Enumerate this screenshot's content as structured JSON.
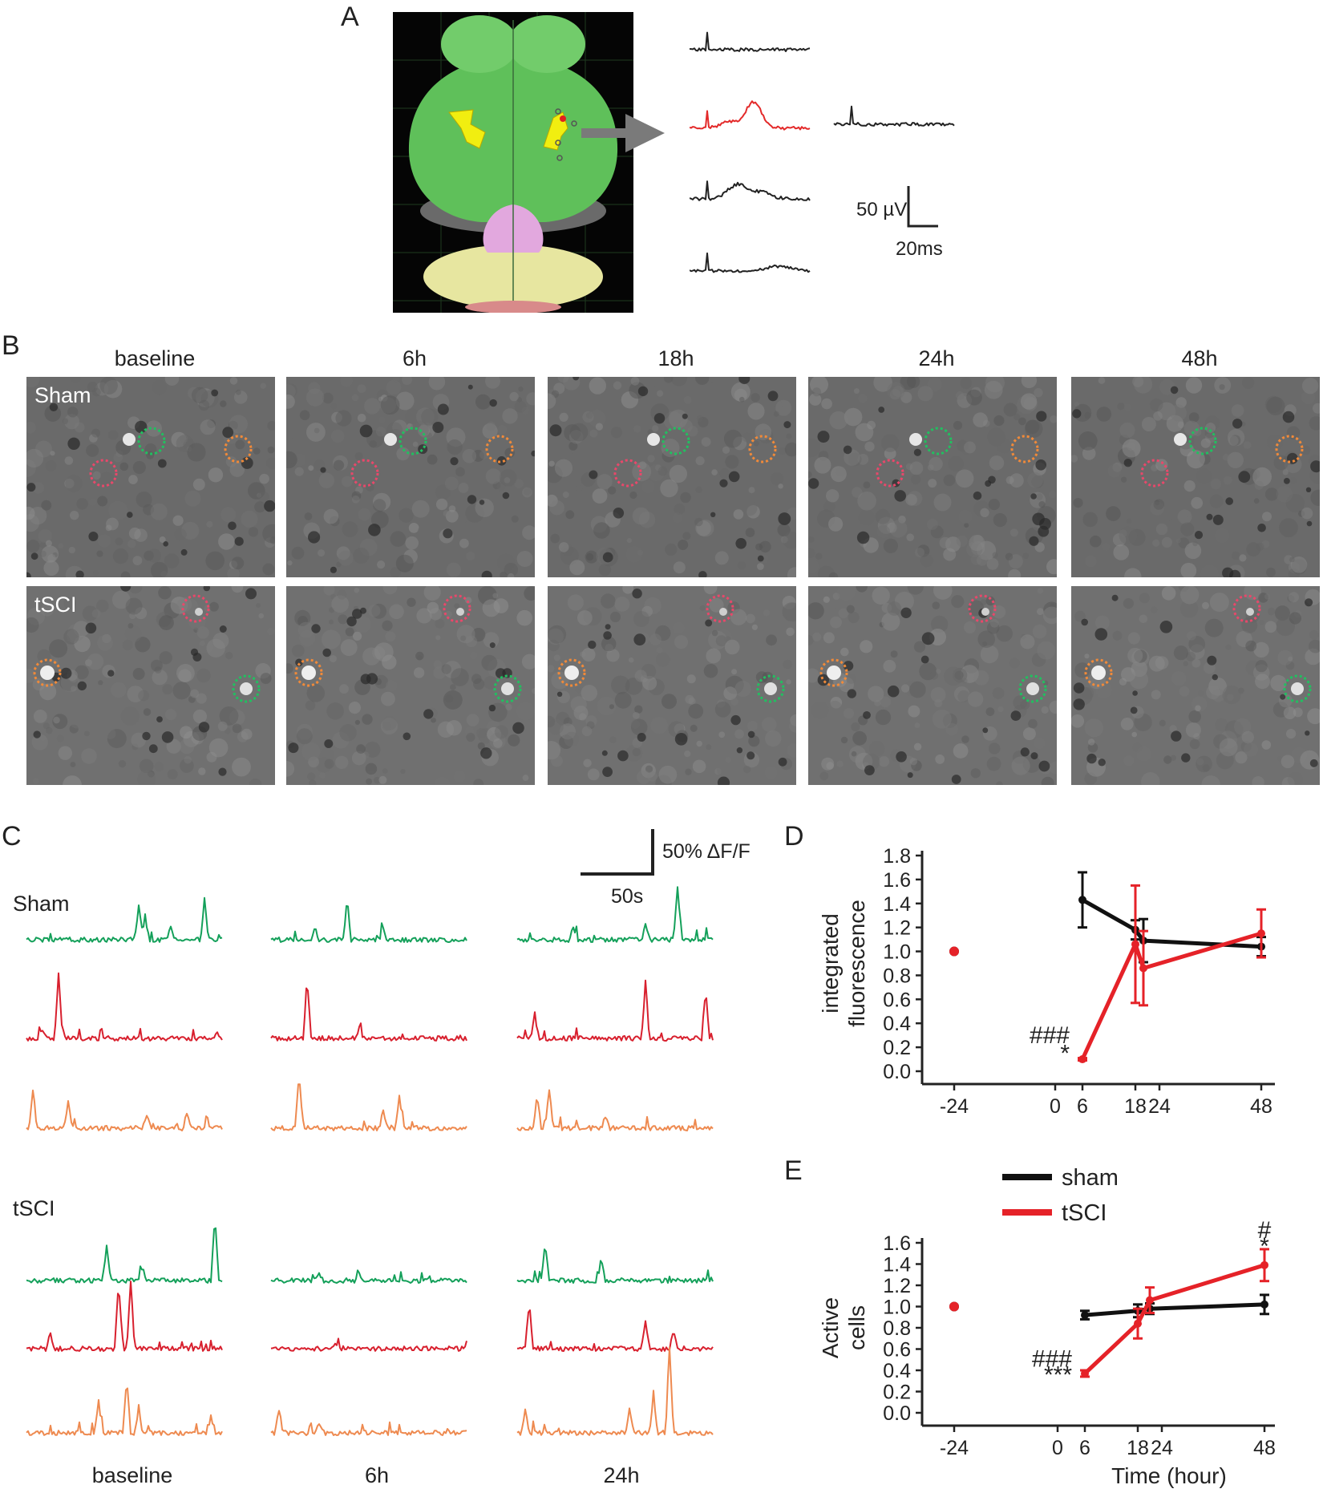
{
  "panels": {
    "a": "A",
    "b": "B",
    "c": "C",
    "d": "D",
    "e": "E"
  },
  "panel_a": {
    "scale_voltage": "50 µV",
    "scale_time": "20ms"
  },
  "panel_b": {
    "timepoints": [
      "baseline",
      "6h",
      "18h",
      "24h",
      "48h"
    ],
    "rows": [
      "Sham",
      "tSCI"
    ],
    "roi_colors": {
      "red": "#e8486a",
      "green": "#21c060",
      "orange": "#f08a3a"
    }
  },
  "panel_c": {
    "scale_y": "50% ΔF/F",
    "scale_x": "50s",
    "groups": [
      "Sham",
      "tSCI"
    ],
    "timepoints": [
      "baseline",
      "6h",
      "24h"
    ],
    "trace_colors": {
      "green": "#14a05a",
      "red": "#d8202e",
      "orange": "#ee8a50"
    }
  },
  "chart_data": [
    {
      "type": "line",
      "panel": "D",
      "title": "",
      "xlabel": "",
      "ylabel": "integrated fluorescence",
      "xticks": [
        -24,
        0,
        6,
        18,
        24,
        48
      ],
      "yticks": [
        0.0,
        0.2,
        0.4,
        0.6,
        0.8,
        1.0,
        1.2,
        1.4,
        1.6,
        1.8
      ],
      "ylim": [
        0,
        1.8
      ],
      "series": [
        {
          "color": "#111111",
          "baseline": {
            "x": -24,
            "y": 1.0
          },
          "points": [
            {
              "x": 6,
              "y": 1.43,
              "err": 0.23
            },
            {
              "x": 18,
              "y": 1.18,
              "err": 0.08
            },
            {
              "x": 20,
              "y": 1.09,
              "err": 0.18
            },
            {
              "x": 48,
              "y": 1.04,
              "err": 0.08
            }
          ]
        },
        {
          "color": "#e52228",
          "baseline": {
            "x": -24,
            "y": 1.0
          },
          "points": [
            {
              "x": 6,
              "y": 0.1,
              "err": 0.01
            },
            {
              "x": 18,
              "y": 1.06,
              "err": 0.49
            },
            {
              "x": 20,
              "y": 0.86,
              "err": 0.31
            },
            {
              "x": 48,
              "y": 1.15,
              "err": 0.2
            }
          ]
        }
      ],
      "annotations": [
        {
          "text": "###",
          "x": 6,
          "y": 0.3
        },
        {
          "text": "*",
          "x": 6,
          "y": 0.15
        }
      ]
    },
    {
      "type": "line",
      "panel": "E",
      "title": "",
      "xlabel": "Time (hour)",
      "ylabel": "Active cells",
      "xticks": [
        -24,
        0,
        6,
        18,
        24,
        48
      ],
      "yticks": [
        0.0,
        0.2,
        0.4,
        0.6,
        0.8,
        1.0,
        1.2,
        1.4,
        1.6
      ],
      "ylim": [
        0,
        1.6
      ],
      "legend_position": "top-center",
      "series": [
        {
          "name": "sham",
          "color": "#111111",
          "baseline": {
            "x": -24,
            "y": 1.0
          },
          "points": [
            {
              "x": 6,
              "y": 0.92,
              "err": 0.04
            },
            {
              "x": 18,
              "y": 0.96,
              "err": 0.06
            },
            {
              "x": 21,
              "y": 0.98,
              "err": 0.05
            },
            {
              "x": 48,
              "y": 1.02,
              "err": 0.09
            }
          ]
        },
        {
          "name": "tSCI",
          "color": "#e52228",
          "baseline": {
            "x": -24,
            "y": 1.0
          },
          "points": [
            {
              "x": 6,
              "y": 0.37,
              "err": 0.03
            },
            {
              "x": 18,
              "y": 0.84,
              "err": 0.14
            },
            {
              "x": 21,
              "y": 1.06,
              "err": 0.12
            },
            {
              "x": 48,
              "y": 1.39,
              "err": 0.15
            }
          ]
        }
      ],
      "annotations": [
        {
          "text": "#",
          "x": 48,
          "y": 1.72
        },
        {
          "text": "*",
          "x": 48,
          "y": 1.57
        },
        {
          "text": "###",
          "x": 6,
          "y": 0.51
        },
        {
          "text": "***",
          "x": 6,
          "y": 0.36
        }
      ]
    }
  ]
}
